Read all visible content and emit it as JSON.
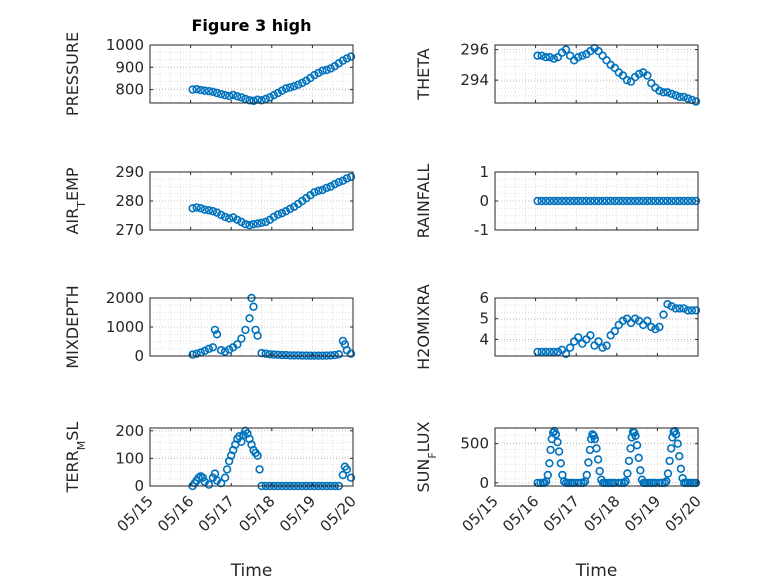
{
  "figure": {
    "title": "Figure 3 high",
    "xlabel": "Time",
    "marker_color": "#0072BD",
    "grid": "on (dotted major + minor)"
  },
  "chart_data": [
    {
      "type": "scatter",
      "name": "pressure",
      "title": "Figure 3 high",
      "ylabel": "PRESSURE",
      "ylabel_sub": "",
      "ylabel_tail": "",
      "xlim": [
        0,
        5
      ],
      "ylim": [
        740,
        1000
      ],
      "yticks": [
        800,
        900,
        1000
      ],
      "ytick_labels": [
        "800",
        "900",
        "1000"
      ],
      "xticks": [],
      "xlabel": "",
      "x": [
        1.05,
        1.15,
        1.25,
        1.35,
        1.45,
        1.55,
        1.65,
        1.75,
        1.85,
        1.95,
        2.05,
        2.15,
        2.25,
        2.35,
        2.45,
        2.55,
        2.65,
        2.75,
        2.85,
        2.95,
        3.05,
        3.15,
        3.25,
        3.35,
        3.45,
        3.55,
        3.65,
        3.75,
        3.85,
        3.95,
        4.05,
        4.15,
        4.25,
        4.35,
        4.45,
        4.55,
        4.65,
        4.75,
        4.85,
        4.95
      ],
      "y": [
        800,
        802,
        798,
        795,
        793,
        790,
        785,
        780,
        775,
        772,
        776,
        770,
        765,
        758,
        752,
        750,
        755,
        752,
        758,
        765,
        775,
        785,
        795,
        805,
        810,
        815,
        822,
        830,
        840,
        852,
        865,
        875,
        885,
        888,
        895,
        905,
        918,
        930,
        940,
        948
      ]
    },
    {
      "type": "scatter",
      "name": "theta",
      "title": "",
      "ylabel": "THETA",
      "ylabel_sub": "",
      "ylabel_tail": "",
      "xlim": [
        0,
        5
      ],
      "ylim": [
        292.5,
        296.3
      ],
      "yticks": [
        294,
        296
      ],
      "ytick_labels": [
        "294",
        "296"
      ],
      "xticks": [],
      "xlabel": "",
      "x": [
        1.05,
        1.15,
        1.25,
        1.35,
        1.45,
        1.55,
        1.65,
        1.75,
        1.85,
        1.95,
        2.05,
        2.15,
        2.25,
        2.35,
        2.45,
        2.55,
        2.65,
        2.75,
        2.85,
        2.95,
        3.05,
        3.15,
        3.25,
        3.35,
        3.45,
        3.55,
        3.65,
        3.75,
        3.85,
        3.95,
        4.05,
        4.15,
        4.25,
        4.35,
        4.45,
        4.55,
        4.65,
        4.75,
        4.85,
        4.95
      ],
      "y": [
        295.6,
        295.6,
        295.5,
        295.5,
        295.4,
        295.5,
        295.8,
        296.0,
        295.6,
        295.3,
        295.5,
        295.6,
        295.7,
        295.9,
        296.1,
        295.9,
        295.6,
        295.3,
        295.0,
        294.8,
        294.5,
        294.3,
        294.0,
        293.9,
        294.2,
        294.4,
        294.5,
        294.3,
        293.8,
        293.5,
        293.3,
        293.2,
        293.2,
        293.1,
        293.0,
        292.9,
        292.9,
        292.8,
        292.7,
        292.6
      ]
    },
    {
      "type": "scatter",
      "name": "air-temp",
      "title": "",
      "ylabel": "AIR",
      "ylabel_sub": "T",
      "ylabel_tail": "EMP",
      "xlim": [
        0,
        5
      ],
      "ylim": [
        270,
        290
      ],
      "yticks": [
        270,
        280,
        290
      ],
      "ytick_labels": [
        "270",
        "280",
        "290"
      ],
      "xticks": [],
      "xlabel": "",
      "x": [
        1.05,
        1.15,
        1.25,
        1.35,
        1.45,
        1.55,
        1.65,
        1.75,
        1.85,
        1.95,
        2.05,
        2.15,
        2.25,
        2.35,
        2.45,
        2.55,
        2.65,
        2.75,
        2.85,
        2.95,
        3.05,
        3.15,
        3.25,
        3.35,
        3.45,
        3.55,
        3.65,
        3.75,
        3.85,
        3.95,
        4.05,
        4.15,
        4.25,
        4.35,
        4.45,
        4.55,
        4.65,
        4.75,
        4.85,
        4.95
      ],
      "y": [
        277.5,
        277.8,
        277.5,
        277.0,
        276.8,
        276.5,
        276.0,
        275.2,
        274.5,
        274.0,
        274.3,
        273.5,
        272.8,
        272.0,
        271.7,
        272.0,
        272.2,
        272.5,
        272.8,
        273.5,
        274.5,
        275.3,
        275.8,
        276.5,
        277.3,
        278.0,
        279.0,
        280.0,
        281.0,
        282.0,
        283.0,
        283.5,
        283.8,
        284.5,
        285.0,
        285.8,
        286.5,
        287.0,
        287.8,
        288.3
      ]
    },
    {
      "type": "scatter",
      "name": "rainfall",
      "title": "",
      "ylabel": "RAINFALL",
      "ylabel_sub": "",
      "ylabel_tail": "",
      "xlim": [
        0,
        5
      ],
      "ylim": [
        -1,
        1
      ],
      "yticks": [
        -1,
        0,
        1
      ],
      "ytick_labels": [
        "-1",
        "0",
        "1"
      ],
      "xticks": [],
      "xlabel": "",
      "x": [
        1.05,
        1.15,
        1.25,
        1.35,
        1.45,
        1.55,
        1.65,
        1.75,
        1.85,
        1.95,
        2.05,
        2.15,
        2.25,
        2.35,
        2.45,
        2.55,
        2.65,
        2.75,
        2.85,
        2.95,
        3.05,
        3.15,
        3.25,
        3.35,
        3.45,
        3.55,
        3.65,
        3.75,
        3.85,
        3.95,
        4.05,
        4.15,
        4.25,
        4.35,
        4.45,
        4.55,
        4.65,
        4.75,
        4.85,
        4.95
      ],
      "y": [
        0,
        0,
        0,
        0,
        0,
        0,
        0,
        0,
        0,
        0,
        0,
        0,
        0,
        0,
        0,
        0,
        0,
        0,
        0,
        0,
        0,
        0,
        0,
        0,
        0,
        0,
        0,
        0,
        0,
        0,
        0,
        0,
        0,
        0,
        0,
        0,
        0,
        0,
        0,
        0
      ]
    },
    {
      "type": "scatter",
      "name": "mixdepth",
      "title": "",
      "ylabel": "MIXDEPTH",
      "ylabel_sub": "",
      "ylabel_tail": "",
      "xlim": [
        0,
        5
      ],
      "ylim": [
        0,
        2000
      ],
      "yticks": [
        0,
        1000,
        2000
      ],
      "ytick_labels": [
        "0",
        "1000",
        "2000"
      ],
      "xticks": [],
      "xlabel": "",
      "x": [
        1.05,
        1.15,
        1.25,
        1.35,
        1.45,
        1.55,
        1.6,
        1.65,
        1.75,
        1.85,
        1.95,
        2.05,
        2.15,
        2.25,
        2.35,
        2.45,
        2.5,
        2.55,
        2.6,
        2.65,
        2.75,
        2.85,
        2.95,
        3.05,
        3.15,
        3.25,
        3.35,
        3.45,
        3.55,
        3.65,
        3.75,
        3.85,
        3.95,
        4.05,
        4.15,
        4.25,
        4.35,
        4.45,
        4.55,
        4.65,
        4.75,
        4.8,
        4.85,
        4.95
      ],
      "y": [
        50,
        80,
        120,
        180,
        250,
        300,
        900,
        750,
        200,
        150,
        220,
        300,
        400,
        600,
        900,
        1300,
        2000,
        1700,
        900,
        700,
        100,
        80,
        60,
        50,
        40,
        30,
        30,
        20,
        20,
        20,
        15,
        15,
        10,
        10,
        10,
        10,
        15,
        20,
        30,
        60,
        520,
        400,
        200,
        80
      ]
    },
    {
      "type": "scatter",
      "name": "h2omixra",
      "title": "",
      "ylabel": "H2OMIXRA",
      "ylabel_sub": "",
      "ylabel_tail": "",
      "xlim": [
        0,
        5
      ],
      "ylim": [
        3.2,
        6
      ],
      "yticks": [
        4,
        5,
        6
      ],
      "ytick_labels": [
        "4",
        "5",
        "6"
      ],
      "xticks": [],
      "xlabel": "",
      "x": [
        1.05,
        1.15,
        1.25,
        1.35,
        1.45,
        1.55,
        1.65,
        1.75,
        1.85,
        1.95,
        2.05,
        2.15,
        2.25,
        2.35,
        2.45,
        2.55,
        2.65,
        2.75,
        2.85,
        2.95,
        3.05,
        3.15,
        3.25,
        3.35,
        3.45,
        3.55,
        3.65,
        3.75,
        3.85,
        3.95,
        4.05,
        4.15,
        4.25,
        4.35,
        4.45,
        4.55,
        4.65,
        4.75,
        4.85,
        4.95
      ],
      "y": [
        3.4,
        3.4,
        3.4,
        3.4,
        3.4,
        3.4,
        3.5,
        3.3,
        3.6,
        3.9,
        4.1,
        3.8,
        4.0,
        4.2,
        3.7,
        3.9,
        3.6,
        3.7,
        4.2,
        4.4,
        4.7,
        4.9,
        5.0,
        4.8,
        5.0,
        4.9,
        4.7,
        4.9,
        4.6,
        4.5,
        4.6,
        5.2,
        5.7,
        5.6,
        5.5,
        5.5,
        5.5,
        5.4,
        5.4,
        5.4
      ]
    },
    {
      "type": "scatter",
      "name": "terr-msl",
      "title": "",
      "ylabel": "TERR",
      "ylabel_sub": "M",
      "ylabel_tail": "SL",
      "xlim": [
        0,
        5
      ],
      "ylim": [
        0,
        210
      ],
      "yticks": [
        0,
        100,
        200
      ],
      "ytick_labels": [
        "0",
        "100",
        "200"
      ],
      "xticks": [
        0,
        1,
        2,
        3,
        4,
        5
      ],
      "xtick_labels": [
        "05/15",
        "05/16",
        "05/17",
        "05/18",
        "05/19",
        "05/20"
      ],
      "xlabel": "Time",
      "x": [
        1.05,
        1.1,
        1.15,
        1.2,
        1.25,
        1.3,
        1.35,
        1.45,
        1.55,
        1.6,
        1.65,
        1.75,
        1.85,
        1.9,
        1.95,
        2.0,
        2.05,
        2.1,
        2.15,
        2.2,
        2.25,
        2.3,
        2.35,
        2.4,
        2.45,
        2.5,
        2.55,
        2.6,
        2.65,
        2.7,
        2.75,
        2.85,
        2.95,
        3.05,
        3.15,
        3.25,
        3.35,
        3.45,
        3.55,
        3.65,
        3.75,
        3.85,
        3.95,
        4.05,
        4.15,
        4.25,
        4.35,
        4.45,
        4.55,
        4.65,
        4.75,
        4.8,
        4.85,
        4.95
      ],
      "y": [
        0,
        10,
        20,
        30,
        35,
        30,
        15,
        5,
        30,
        45,
        20,
        10,
        30,
        60,
        90,
        110,
        130,
        150,
        170,
        180,
        160,
        185,
        200,
        190,
        170,
        150,
        130,
        120,
        110,
        60,
        0,
        0,
        0,
        0,
        0,
        0,
        0,
        0,
        0,
        0,
        0,
        0,
        0,
        0,
        0,
        0,
        0,
        0,
        0,
        0,
        40,
        70,
        60,
        30
      ]
    },
    {
      "type": "scatter",
      "name": "sun-flux",
      "title": "",
      "ylabel": "SUN",
      "ylabel_sub": "F",
      "ylabel_tail": "LUX",
      "xlim": [
        0,
        5
      ],
      "ylim": [
        -40,
        700
      ],
      "yticks": [
        0,
        500
      ],
      "ytick_labels": [
        "0",
        "500"
      ],
      "xticks": [
        0,
        1,
        2,
        3,
        4,
        5
      ],
      "xtick_labels": [
        "05/15",
        "05/16",
        "05/17",
        "05/18",
        "05/19",
        "05/20"
      ],
      "xlabel": "Time",
      "x": [
        1.05,
        1.12,
        1.18,
        1.22,
        1.26,
        1.3,
        1.34,
        1.37,
        1.4,
        1.43,
        1.46,
        1.5,
        1.54,
        1.58,
        1.62,
        1.66,
        1.7,
        1.75,
        1.8,
        1.85,
        1.9,
        1.95,
        2.05,
        2.12,
        2.18,
        2.22,
        2.26,
        2.3,
        2.34,
        2.37,
        2.4,
        2.43,
        2.46,
        2.5,
        2.54,
        2.58,
        2.62,
        2.66,
        2.7,
        2.75,
        2.8,
        2.85,
        2.9,
        2.95,
        3.05,
        3.12,
        3.18,
        3.22,
        3.26,
        3.3,
        3.34,
        3.37,
        3.4,
        3.43,
        3.46,
        3.5,
        3.54,
        3.58,
        3.62,
        3.66,
        3.7,
        3.75,
        3.8,
        3.85,
        3.9,
        3.95,
        4.05,
        4.12,
        4.18,
        4.22,
        4.26,
        4.3,
        4.34,
        4.37,
        4.4,
        4.43,
        4.46,
        4.5,
        4.54,
        4.58,
        4.62,
        4.66,
        4.7,
        4.75,
        4.8,
        4.85,
        4.9,
        4.95
      ],
      "y": [
        0,
        0,
        0,
        0,
        20,
        100,
        250,
        420,
        560,
        640,
        660,
        620,
        520,
        400,
        250,
        100,
        20,
        0,
        0,
        0,
        0,
        0,
        0,
        0,
        0,
        20,
        100,
        260,
        420,
        560,
        620,
        600,
        560,
        440,
        300,
        150,
        40,
        0,
        0,
        0,
        0,
        0,
        0,
        0,
        0,
        0,
        0,
        20,
        120,
        280,
        440,
        580,
        650,
        640,
        600,
        480,
        320,
        160,
        40,
        0,
        0,
        0,
        0,
        0,
        0,
        0,
        0,
        0,
        0,
        20,
        120,
        280,
        440,
        580,
        650,
        660,
        620,
        500,
        340,
        180,
        60,
        0,
        0,
        0,
        0,
        0,
        0,
        0
      ]
    }
  ]
}
